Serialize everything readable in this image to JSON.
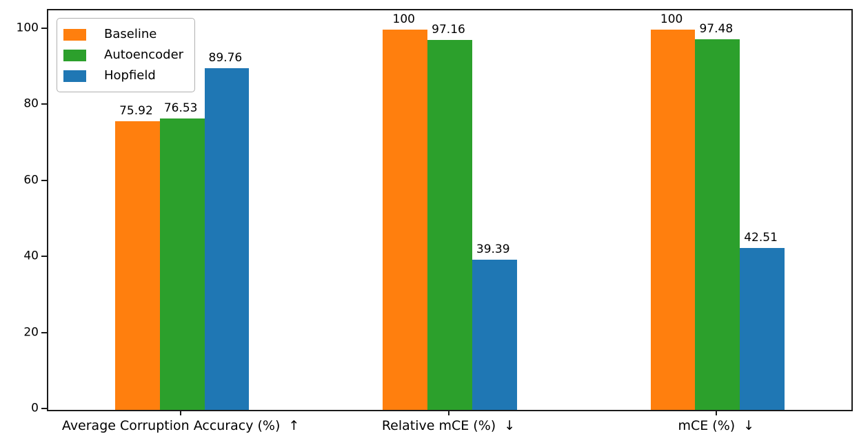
{
  "chart_data": {
    "type": "bar",
    "title": "",
    "xlabel": "",
    "ylabel": "",
    "categories": [
      "Average Corruption Accuracy (%)  ↑",
      "Relative mCE (%)  ↓",
      "mCE (%)  ↓"
    ],
    "series": [
      {
        "name": "Baseline",
        "color": "#ff7f0e",
        "values": [
          75.92,
          100,
          100
        ],
        "labels": [
          "75.92",
          "100",
          "100"
        ]
      },
      {
        "name": "Autoencoder",
        "color": "#2ca02c",
        "values": [
          76.53,
          97.16,
          97.48
        ],
        "labels": [
          "76.53",
          "97.16",
          "97.48"
        ]
      },
      {
        "name": "Hopfield",
        "color": "#1f77b4",
        "values": [
          89.76,
          39.39,
          42.51
        ],
        "labels": [
          "89.76",
          "39.39",
          "42.51"
        ]
      }
    ],
    "yticks": [
      0,
      20,
      40,
      60,
      80,
      100
    ],
    "ylim": [
      0,
      105
    ],
    "grid": false,
    "legend_position": "upper left",
    "colors": {
      "background": "#ffffff",
      "spine": "#1a1a1a",
      "text": "#000000",
      "legend_border": "#b0b0b0"
    }
  }
}
